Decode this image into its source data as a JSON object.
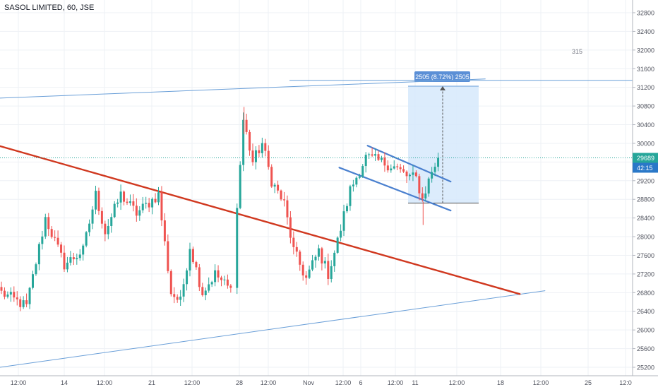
{
  "header": {
    "symbol_title": "SASOL LIMITED, 60, JSE"
  },
  "colors": {
    "up": "#26a69a",
    "down": "#ef5350",
    "grid": "#eef1f5",
    "trend_thin": "#6a9fd8",
    "trend_red": "#d0381f",
    "channel": "#4a80cf",
    "range_fill": "#d6e9fb",
    "range_border": "#6a9fd8",
    "range_label_bg": "#5b8fd6",
    "price_dotted": "#26a69a",
    "price_tag": "#26a69a",
    "time_tag": "#2a78c8",
    "axis_text": "#50535e"
  },
  "chart_data": {
    "type": "candlestick",
    "interval": "60",
    "ylim": [
      25100,
      33000
    ],
    "y_ticks": [
      25200,
      25600,
      26000,
      26400,
      26800,
      27200,
      27600,
      28000,
      28400,
      28800,
      29200,
      29600,
      30000,
      30400,
      30800,
      31200,
      31600,
      32000,
      32400,
      32800
    ],
    "x_ticks": [
      "12:00",
      "14",
      "12:00",
      "21",
      "12:00",
      "28",
      "12:00",
      "Nov",
      "12:00",
      "6",
      "12:00",
      "11",
      "12:00",
      "18",
      "12:00",
      "25",
      "12:0"
    ],
    "last_price": 29689,
    "countdown": "42:15",
    "corner_text": "315",
    "range_label": "2505 (8.72%) 2505",
    "range_measure": {
      "from": 28720,
      "to": 31225,
      "change": 2505,
      "change_pct": 8.72
    },
    "horizontal_line": 31350,
    "trendlines": [
      {
        "name": "upper-channel",
        "start": {
          "bar": 0,
          "price": 30970
        },
        "end": {
          "bar": 154,
          "price": 31380
        }
      },
      {
        "name": "lower-channel",
        "start": {
          "bar": 0,
          "price": 25200
        },
        "end": {
          "bar": 173,
          "price": 26840
        }
      },
      {
        "name": "descending-resistance",
        "start": {
          "bar": 0,
          "price": 29940
        },
        "end": {
          "bar": 165,
          "price": 26770
        }
      },
      {
        "name": "flag-top",
        "start": {
          "bar": 117,
          "price": 29950
        },
        "end": {
          "bar": 143,
          "price": 29180
        }
      },
      {
        "name": "flag-bottom",
        "start": {
          "bar": 108,
          "price": 29480
        },
        "end": {
          "bar": 143,
          "price": 28560
        }
      }
    ],
    "anchor_points": [
      {
        "bar": 0,
        "price": 26800
      },
      {
        "bar": 8,
        "price": 26500
      },
      {
        "bar": 14,
        "price": 28400
      },
      {
        "bar": 20,
        "price": 27400
      },
      {
        "bar": 26,
        "price": 27700
      },
      {
        "bar": 30,
        "price": 28900
      },
      {
        "bar": 33,
        "price": 28100
      },
      {
        "bar": 38,
        "price": 28900
      },
      {
        "bar": 43,
        "price": 28500
      },
      {
        "bar": 50,
        "price": 28900
      },
      {
        "bar": 54,
        "price": 26800
      },
      {
        "bar": 57,
        "price": 26600
      },
      {
        "bar": 60,
        "price": 27800
      },
      {
        "bar": 64,
        "price": 26800
      },
      {
        "bar": 68,
        "price": 27200
      },
      {
        "bar": 73,
        "price": 26850
      },
      {
        "bar": 75,
        "price": 28600
      },
      {
        "bar": 77,
        "price": 30500
      },
      {
        "bar": 80,
        "price": 29600
      },
      {
        "bar": 83,
        "price": 30000
      },
      {
        "bar": 86,
        "price": 29200
      },
      {
        "bar": 90,
        "price": 28700
      },
      {
        "bar": 93,
        "price": 27700
      },
      {
        "bar": 97,
        "price": 27100
      },
      {
        "bar": 101,
        "price": 27700
      },
      {
        "bar": 104,
        "price": 27200
      },
      {
        "bar": 107,
        "price": 27900
      },
      {
        "bar": 111,
        "price": 29000
      },
      {
        "bar": 116,
        "price": 29700
      },
      {
        "bar": 121,
        "price": 29600
      },
      {
        "bar": 125,
        "price": 29500
      },
      {
        "bar": 129,
        "price": 29300
      },
      {
        "bar": 132,
        "price": 29250
      },
      {
        "bar": 134,
        "price": 28800
      },
      {
        "bar": 137,
        "price": 29400
      },
      {
        "bar": 139,
        "price": 29689
      }
    ]
  }
}
